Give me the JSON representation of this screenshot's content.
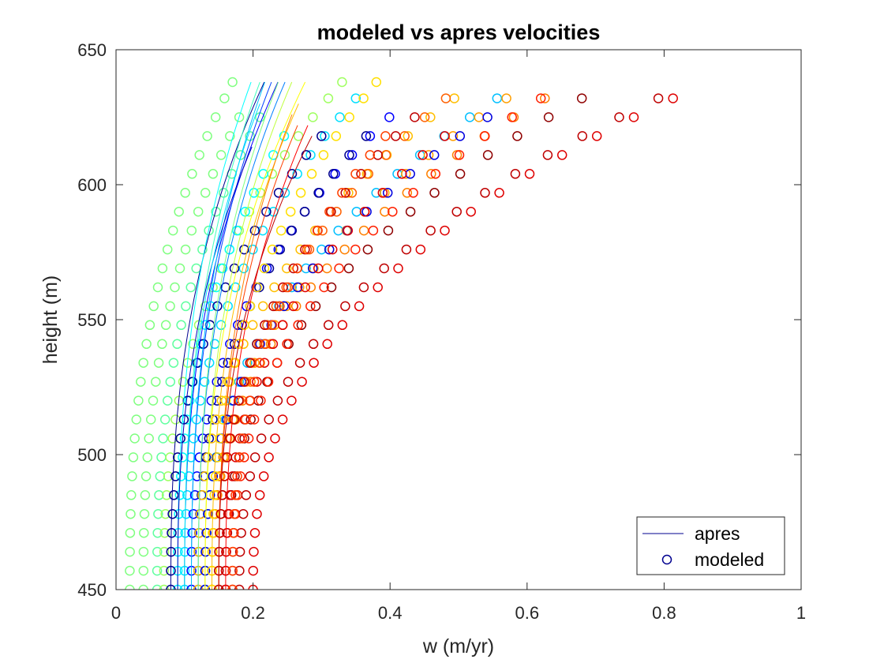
{
  "chart_data": {
    "type": "scatter",
    "title": "modeled vs apres velocities",
    "xlabel": "w (m/yr)",
    "ylabel": "height (m)",
    "xlim": [
      0,
      1
    ],
    "ylim": [
      450,
      650
    ],
    "xticks": [
      "0",
      "0.2",
      "0.4",
      "0.6",
      "0.8",
      "1"
    ],
    "yticks": [
      "450",
      "500",
      "550",
      "600",
      "650"
    ],
    "grid": false,
    "legend": {
      "placement": "bottom-right",
      "entries": [
        {
          "label": "apres",
          "marker": "line",
          "color": "#00008f"
        },
        {
          "label": "modeled",
          "marker": "circle",
          "color": "#00008f"
        }
      ]
    },
    "profile_heights_m": [
      450,
      457,
      464,
      471,
      478,
      485,
      492,
      499,
      506,
      513,
      520,
      527,
      534,
      541,
      548,
      555,
      562,
      569,
      576,
      583,
      590,
      597,
      604,
      611,
      618,
      625,
      632,
      638
    ],
    "profile_shape_note": "each modeled series: w(h) = w450 + (wtop - w450) * ((h - 450) / (htop - 450))^2.5",
    "modeled_series": [
      {
        "color": "#80ff80",
        "w450": 0.02,
        "wtop": 0.17,
        "htop": 638
      },
      {
        "color": "#80ff80",
        "w450": 0.04,
        "wtop": 0.19,
        "htop": 630
      },
      {
        "color": "#60ff9f",
        "w450": 0.06,
        "wtop": 0.21,
        "htop": 625
      },
      {
        "color": "#9fff60",
        "w450": 0.07,
        "wtop": 0.33,
        "htop": 638
      },
      {
        "color": "#00ffff",
        "w450": 0.09,
        "wtop": 0.25,
        "htop": 620
      },
      {
        "color": "#00dfff",
        "w450": 0.1,
        "wtop": 0.35,
        "htop": 632
      },
      {
        "color": "#00008f",
        "w450": 0.08,
        "wtop": 0.32,
        "htop": 624
      },
      {
        "color": "#0000ff",
        "w450": 0.11,
        "wtop": 0.42,
        "htop": 630
      },
      {
        "color": "#00008f",
        "w450": 0.12,
        "wtop": 0.38,
        "htop": 622
      },
      {
        "color": "#00bfff",
        "w450": 0.13,
        "wtop": 0.58,
        "htop": 636
      },
      {
        "color": "#ffbf00",
        "w450": 0.12,
        "wtop": 0.52,
        "htop": 637
      },
      {
        "color": "#ff9f00",
        "w450": 0.14,
        "wtop": 0.6,
        "htop": 637
      },
      {
        "color": "#0000df",
        "w450": 0.13,
        "wtop": 0.56,
        "htop": 628
      },
      {
        "color": "#ff8000",
        "w450": 0.14,
        "wtop": 0.66,
        "htop": 637
      },
      {
        "color": "#ff6000",
        "w450": 0.15,
        "wtop": 0.5,
        "htop": 636
      },
      {
        "color": "#ffdf00",
        "w450": 0.14,
        "wtop": 0.38,
        "htop": 638
      },
      {
        "color": "#8f0000",
        "w450": 0.16,
        "wtop": 0.68,
        "htop": 632
      },
      {
        "color": "#df0000",
        "w450": 0.16,
        "wtop": 0.48,
        "htop": 618
      },
      {
        "color": "#ff2000",
        "w450": 0.17,
        "wtop": 0.62,
        "htop": 632
      },
      {
        "color": "#bf0000",
        "w450": 0.15,
        "wtop": 0.44,
        "htop": 626
      },
      {
        "color": "#df0000",
        "w450": 0.2,
        "wtop": 0.83,
        "htop": 634
      },
      {
        "color": "#bf0000",
        "w450": 0.18,
        "wtop": 0.8,
        "htop": 633
      },
      {
        "color": "#ff4000",
        "w450": 0.17,
        "wtop": 0.4,
        "htop": 620
      }
    ],
    "apres_series": [
      {
        "color": "#00008f",
        "w450": 0.08,
        "wtop": 0.22,
        "htop": 640
      },
      {
        "color": "#0000ff",
        "w450": 0.1,
        "wtop": 0.24,
        "htop": 640
      },
      {
        "color": "#0040ff",
        "w450": 0.11,
        "wtop": 0.23,
        "htop": 640
      },
      {
        "color": "#0080ff",
        "w450": 0.12,
        "wtop": 0.25,
        "htop": 640
      },
      {
        "color": "#00bfff",
        "w450": 0.11,
        "wtop": 0.22,
        "htop": 640
      },
      {
        "color": "#00ffff",
        "w450": 0.09,
        "wtop": 0.2,
        "htop": 640
      },
      {
        "color": "#40ffbf",
        "w450": 0.1,
        "wtop": 0.21,
        "htop": 638
      },
      {
        "color": "#80ff80",
        "w450": 0.12,
        "wtop": 0.24,
        "htop": 640
      },
      {
        "color": "#bfff40",
        "w450": 0.13,
        "wtop": 0.26,
        "htop": 640
      },
      {
        "color": "#ffff00",
        "w450": 0.13,
        "wtop": 0.28,
        "htop": 640
      },
      {
        "color": "#ffbf00",
        "w450": 0.14,
        "wtop": 0.27,
        "htop": 632
      },
      {
        "color": "#ff8000",
        "w450": 0.15,
        "wtop": 0.26,
        "htop": 628
      },
      {
        "color": "#ff4000",
        "w450": 0.15,
        "wtop": 0.27,
        "htop": 625
      },
      {
        "color": "#ff0000",
        "w450": 0.16,
        "wtop": 0.28,
        "htop": 622
      },
      {
        "color": "#bf0000",
        "w450": 0.15,
        "wtop": 0.29,
        "htop": 620
      },
      {
        "color": "#0000bf",
        "w450": 0.09,
        "wtop": 0.2,
        "htop": 615
      },
      {
        "color": "#00dfff",
        "w450": 0.1,
        "wtop": 0.21,
        "htop": 630
      }
    ]
  }
}
